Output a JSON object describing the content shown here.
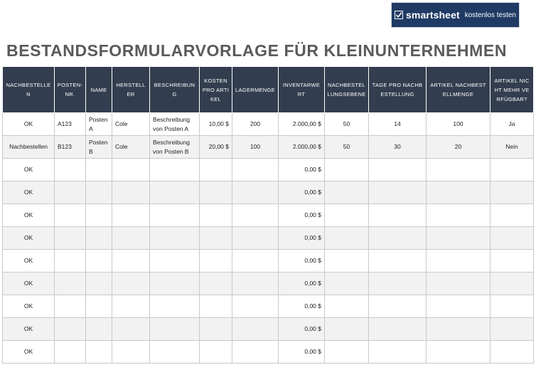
{
  "banner": {
    "brand": "smartsheet",
    "cta": "kostenlos testen",
    "logo_icon": "smartsheet-check-icon"
  },
  "title": "BESTANDSFORMULARVORLAGE FÜR KLEINUNTERNEHMEN",
  "colors": {
    "header_bg": "#323e4f",
    "banner_bg": "#1f3a64",
    "title": "#5a5a5a",
    "row_alt": "#f2f2f2"
  },
  "table": {
    "headers": [
      "NACHBESTELLEN",
      "POSTEN-NR.",
      "NAME",
      "HERSTELLER",
      "BESCHREIBUNG",
      "KOSTEN PRO ARTIKEL",
      "LAGERMENGE",
      "INVENTARWERT",
      "NACHBESTELLUNGSEBENE",
      "TAGE PRO NACHBESTELLUNG",
      "ARTIKEL NACHBESTELLMENGE",
      "ARTIKEL NICHT MEHR VERFÜGBAR?"
    ],
    "rows": [
      [
        "OK",
        "A123",
        "Posten A",
        "Cole",
        "Beschreibung von Posten A",
        "10,00 $",
        "200",
        "2.000,00 $",
        "50",
        "14",
        "100",
        "Ja"
      ],
      [
        "Nachbestellen",
        "B123",
        "Posten B",
        "Cole",
        "Beschreibung von Posten B",
        "20,00 $",
        "100",
        "2.000,00 $",
        "50",
        "30",
        "20",
        "Nein"
      ],
      [
        "OK",
        "",
        "",
        "",
        "",
        "",
        "",
        "0,00 $",
        "",
        "",
        "",
        ""
      ],
      [
        "OK",
        "",
        "",
        "",
        "",
        "",
        "",
        "0,00 $",
        "",
        "",
        "",
        ""
      ],
      [
        "OK",
        "",
        "",
        "",
        "",
        "",
        "",
        "0,00 $",
        "",
        "",
        "",
        ""
      ],
      [
        "OK",
        "",
        "",
        "",
        "",
        "",
        "",
        "0,00 $",
        "",
        "",
        "",
        ""
      ],
      [
        "OK",
        "",
        "",
        "",
        "",
        "",
        "",
        "0,00 $",
        "",
        "",
        "",
        ""
      ],
      [
        "OK",
        "",
        "",
        "",
        "",
        "",
        "",
        "0,00 $",
        "",
        "",
        "",
        ""
      ],
      [
        "OK",
        "",
        "",
        "",
        "",
        "",
        "",
        "0,00 $",
        "",
        "",
        "",
        ""
      ],
      [
        "OK",
        "",
        "",
        "",
        "",
        "",
        "",
        "0,00 $",
        "",
        "",
        "",
        ""
      ],
      [
        "OK",
        "",
        "",
        "",
        "",
        "",
        "",
        "0,00 $",
        "",
        "",
        "",
        ""
      ]
    ]
  }
}
